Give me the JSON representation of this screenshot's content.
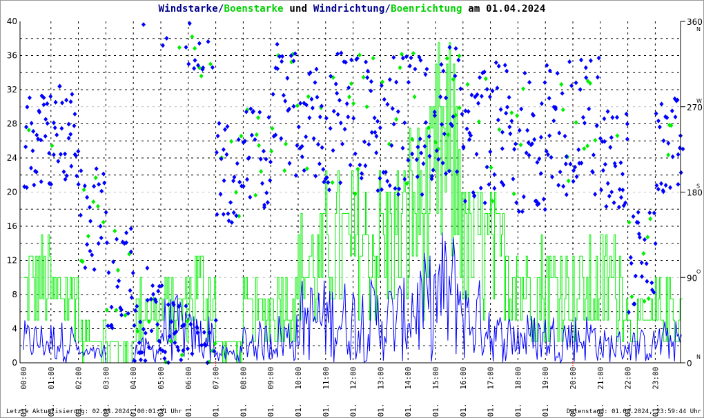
{
  "title": {
    "part1": "Windstarke",
    "sep1": "/",
    "part2": "Boenstarke",
    "mid": " und ",
    "part3": "Windrichtung",
    "sep2": "/",
    "part4": "Boenrichtung",
    "tail": " am 01.04.2024"
  },
  "footer": {
    "left": "Letzte Aktualisierung: 02.04.2024, 00:01:31 Uhr",
    "right": "Datenstand: 01.04.2024, 23:59:44 Uhr"
  },
  "chart_data": {
    "type": "line",
    "title": "Windstarke/Boenstarke und Windrichtung/Boenrichtung am 01.04.2024",
    "left_axis": {
      "range": [
        0,
        40
      ],
      "ticks": [
        "0",
        "4",
        "8",
        "12",
        "16",
        "20",
        "24",
        "28",
        "32",
        "36",
        "40"
      ]
    },
    "right_axis": {
      "range": [
        0,
        360
      ],
      "ticks": [
        {
          "v": 0,
          "label": "0",
          "dir": "N"
        },
        {
          "v": 90,
          "label": "90",
          "dir": "O"
        },
        {
          "v": 180,
          "label": "180",
          "dir": "S"
        },
        {
          "v": 270,
          "label": "270",
          "dir": "W"
        },
        {
          "v": 360,
          "label": "360",
          "dir": "N"
        }
      ]
    },
    "x_ticks": [
      "01. 00:00",
      "01. 01:00",
      "01. 02:00",
      "01. 03:00",
      "01. 04:00",
      "01. 05:00",
      "01. 06:00",
      "01. 07:00",
      "01. 08:00",
      "01. 09:00",
      "01. 10:00",
      "01. 11:00",
      "01. 12:00",
      "01. 13:00",
      "01. 14:00",
      "01. 15:00",
      "01. 16:00",
      "01. 17:00",
      "01. 18:00",
      "01. 19:00",
      "01. 20:00",
      "01. 21:00",
      "01. 22:00",
      "01. 23:00"
    ],
    "series": [
      {
        "name": "Windstarke",
        "color": "#0000ff",
        "kind": "line",
        "hourly_peak": [
          5,
          5,
          2,
          0,
          3,
          8,
          6,
          2,
          5,
          6,
          10,
          10,
          10,
          10,
          13,
          16,
          10,
          6,
          6,
          6,
          6,
          4,
          4,
          5
        ]
      },
      {
        "name": "Boenstarke",
        "color": "#00ee00",
        "kind": "line",
        "hourly_peak": [
          15,
          13,
          5,
          2,
          10,
          10,
          14,
          3,
          9,
          12,
          19,
          23,
          23,
          24,
          30,
          38,
          22,
          20,
          15,
          15,
          14,
          16,
          7,
          10
        ]
      },
      {
        "name": "Windrichtung",
        "color": "#0000ff",
        "kind": "scatter",
        "unit": "deg",
        "hourly_mean": [
          234,
          243,
          153,
          90,
          45,
          27,
          351,
          198,
          216,
          270,
          252,
          252,
          252,
          252,
          252,
          261,
          243,
          243,
          234,
          243,
          252,
          216,
          108,
          225
        ]
      },
      {
        "name": "Boenrichtung",
        "color": "#00ee00",
        "kind": "scatter",
        "unit": "deg",
        "hourly_mean": [
          234,
          243,
          153,
          90,
          45,
          27,
          351,
          198,
          216,
          270,
          252,
          252,
          252,
          252,
          252,
          261,
          243,
          243,
          234,
          243,
          252,
          216,
          108,
          225
        ]
      }
    ]
  }
}
